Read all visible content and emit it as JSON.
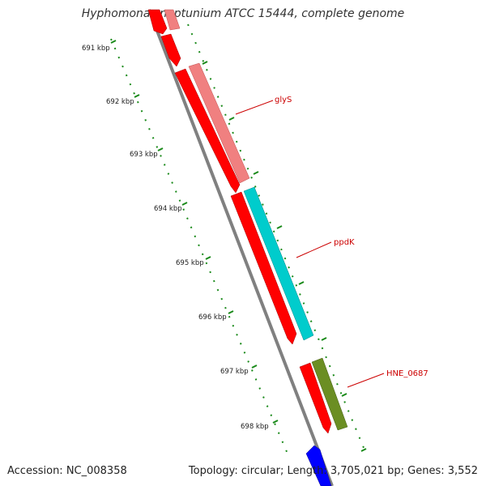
{
  "title": "Hyphomonas neptunium ATCC 15444, complete genome",
  "footer": {
    "accession": "Accession: NC_008358",
    "summary": "Topology: circular; Length: 3,705,021 bp; Genes: 3,552"
  },
  "ticks": [
    {
      "label": "691 kbp"
    },
    {
      "label": "692 kbp"
    },
    {
      "label": "693 kbp"
    },
    {
      "label": "694 kbp"
    },
    {
      "label": "695 kbp"
    },
    {
      "label": "696 kbp"
    },
    {
      "label": "697 kbp"
    },
    {
      "label": "698 kbp"
    }
  ],
  "gene_labels": [
    {
      "name": "glyS"
    },
    {
      "name": "ppdK"
    },
    {
      "name": "HNE_0687"
    }
  ],
  "colors": {
    "backbone": "#888888",
    "forward_cds": "#ff0000",
    "glyS": "#f08080",
    "ppdK": "#00cccc",
    "HNE_0687": "#6b8e23",
    "reverse_cds": "#0000ff",
    "tick": "#006400",
    "label": "#cc0000"
  }
}
